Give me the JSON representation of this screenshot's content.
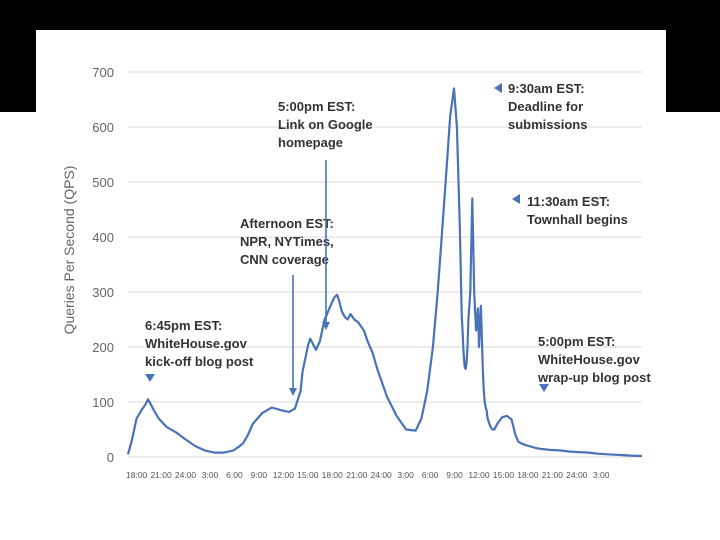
{
  "colors": {
    "line": "#4a72b8",
    "annotation": "#4a72b8",
    "background": "#ffffff",
    "frame": "#000000"
  },
  "chart_data": {
    "type": "line",
    "ylabel": "Queries Per Second (QPS)",
    "xlabel": "",
    "ylim": [
      0,
      700
    ],
    "yticks": [
      0,
      100,
      200,
      300,
      400,
      500,
      600,
      700
    ],
    "grid": "horizontal",
    "x_tick_labels": [
      "18:00",
      "21:00",
      "24:00",
      "3:00",
      "6:00",
      "9:00",
      "12:00",
      "15:00",
      "18:00",
      "21:00",
      "24:00",
      "3:00",
      "6:00",
      "9:00",
      "12:00",
      "15:00",
      "18:00",
      "21:00",
      "24:00",
      "3:00"
    ],
    "series": [
      {
        "x": [
          0,
          0.4,
          0.9,
          1.4,
          1.8,
          2.1,
          2.4,
          2.7,
          3.2,
          4,
          5,
          6,
          7,
          8,
          9,
          10,
          11,
          11.5,
          12,
          12.5,
          13,
          14,
          15,
          16,
          16.8,
          17.4,
          18,
          18.2,
          18.5,
          18.8,
          19,
          19.3,
          19.6,
          20,
          20.5,
          21,
          21.5,
          21.8,
          22,
          22.3,
          22.6,
          22.9,
          23.2,
          23.6,
          24,
          24.6,
          25,
          25.5,
          26,
          27,
          28,
          29,
          30,
          30.6,
          31.2,
          31.8,
          32.3,
          32.8,
          33.2,
          33.6,
          34,
          34.3,
          34.6,
          34.8,
          35,
          35.1,
          35.2,
          35.3,
          35.4,
          35.5,
          35.7,
          35.9,
          36.1,
          36.3,
          36.5,
          36.6,
          36.8,
          37,
          37.1,
          37.2,
          37.3,
          37.4,
          37.5,
          37.7,
          37.8,
          38,
          38.2,
          38.5,
          39,
          39.5,
          40,
          40.4,
          40.7,
          41,
          41.4,
          41.8,
          42.2,
          42.6,
          43,
          44,
          45,
          46,
          47,
          48,
          49,
          50,
          51,
          52,
          53,
          53.6
        ],
        "y": [
          5,
          30,
          70,
          85,
          95,
          105,
          95,
          85,
          70,
          55,
          45,
          32,
          20,
          12,
          8,
          8,
          12,
          18,
          25,
          40,
          60,
          80,
          90,
          85,
          82,
          88,
          120,
          155,
          180,
          205,
          215,
          205,
          195,
          210,
          250,
          270,
          290,
          295,
          285,
          265,
          255,
          250,
          260,
          250,
          245,
          230,
          210,
          190,
          160,
          110,
          75,
          50,
          48,
          70,
          120,
          200,
          300,
          420,
          520,
          620,
          670,
          600,
          420,
          260,
          190,
          165,
          160,
          170,
          200,
          250,
          300,
          470,
          300,
          230,
          270,
          200,
          275,
          160,
          120,
          100,
          90,
          85,
          70,
          60,
          55,
          50,
          50,
          60,
          72,
          75,
          68,
          40,
          28,
          25,
          22,
          20,
          18,
          16,
          15,
          13,
          12,
          10,
          9,
          8,
          6,
          5,
          4,
          3,
          2,
          2
        ]
      }
    ],
    "annotations": [
      {
        "lines": [
          "6:45pm EST:",
          "WhiteHouse.gov",
          "kick-off blog post"
        ],
        "x": 2.1,
        "y": 105
      },
      {
        "lines": [
          "Afternoon EST:",
          "NPR, NYTimes,",
          "CNN coverage"
        ],
        "x": 16.8,
        "y": 82
      },
      {
        "lines": [
          "5:00pm EST:",
          "Link on Google",
          "homepage"
        ],
        "x": 20,
        "y": 210
      },
      {
        "lines": [
          "9:30am EST:",
          "Deadline for",
          "submissions"
        ],
        "x": 35.2,
        "y": 670
      },
      {
        "lines": [
          "11:30am EST:",
          "Townhall begins"
        ],
        "x": 37.2,
        "y": 470
      },
      {
        "lines": [
          "5:00pm EST:",
          "WhiteHouse.gov",
          "wrap-up blog post"
        ],
        "x": 43.5,
        "y": 75
      }
    ]
  }
}
